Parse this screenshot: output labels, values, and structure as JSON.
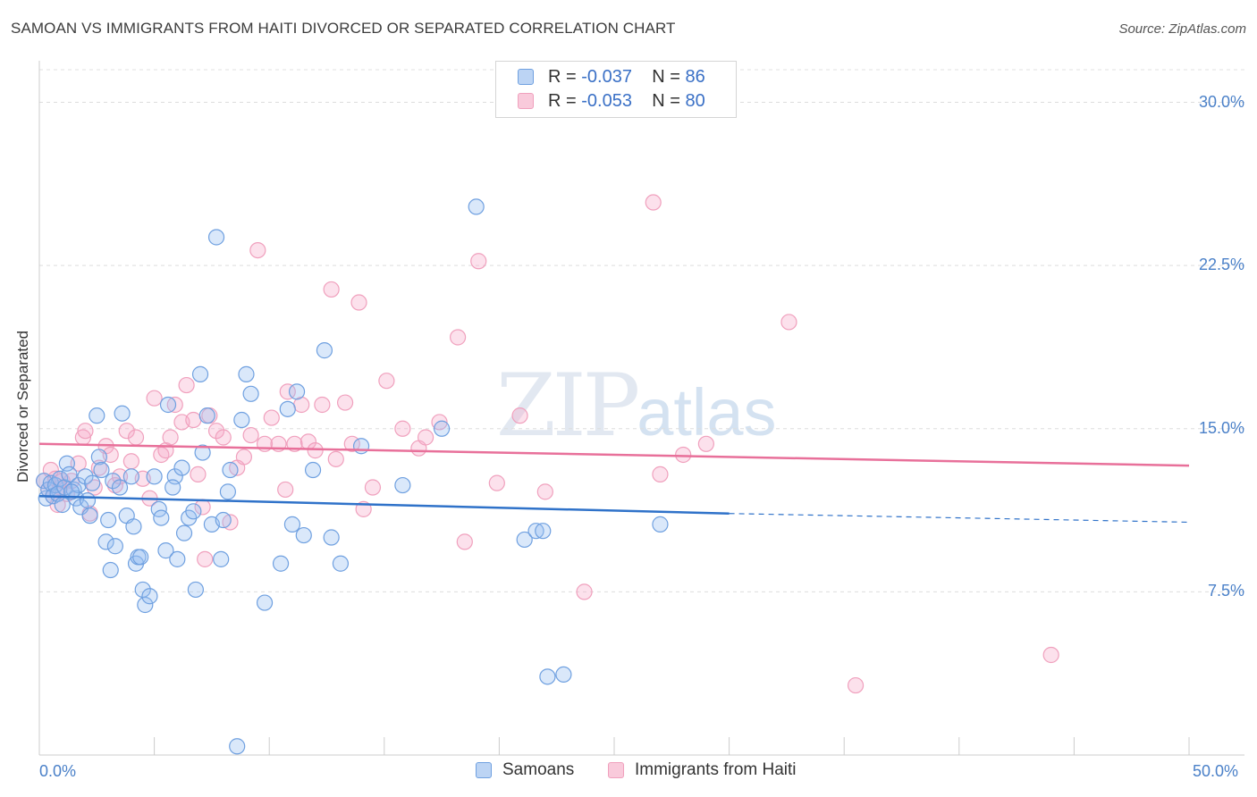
{
  "title": "SAMOAN VS IMMIGRANTS FROM HAITI DIVORCED OR SEPARATED CORRELATION CHART",
  "source": "Source: ZipAtlas.com",
  "watermark": {
    "zip": "ZIP",
    "atlas": "atlas"
  },
  "legend": {
    "r_label": "R =",
    "n_label": "N =",
    "series": [
      {
        "r": "-0.037",
        "n": "86"
      },
      {
        "r": "-0.053",
        "n": "80"
      }
    ]
  },
  "bottom_legend": [
    "Samoans",
    "Immigrants from Haiti"
  ],
  "chart_data": {
    "type": "scatter",
    "title": "SAMOAN VS IMMIGRANTS FROM HAITI DIVORCED OR SEPARATED CORRELATION CHART",
    "xlabel": "",
    "ylabel": "Divorced or Separated",
    "xlim": [
      0,
      50
    ],
    "ylim": [
      0,
      31.5
    ],
    "x_tick_labels": [
      "0.0%",
      "50.0%"
    ],
    "y_ticks": [
      7.5,
      15.0,
      22.5,
      30.0
    ],
    "y_tick_labels": [
      "7.5%",
      "15.0%",
      "22.5%",
      "30.0%"
    ],
    "colors": {
      "samoans": "#6fa0e0",
      "haiti": "#f0a0bd",
      "samoans_line": "#2f72c9",
      "haiti_line": "#e8709a"
    },
    "series": [
      {
        "name": "Samoans",
        "r": -0.037,
        "n": 86,
        "trend": {
          "x0": 0,
          "y0": 11.9,
          "x1": 30,
          "y1": 11.1,
          "dash_to_x": 50,
          "dash_to_y": 10.7
        },
        "points": [
          [
            0.2,
            12.6
          ],
          [
            0.3,
            11.8
          ],
          [
            0.4,
            12.2
          ],
          [
            0.5,
            12.5
          ],
          [
            0.6,
            11.9
          ],
          [
            0.7,
            12.4
          ],
          [
            0.8,
            12.0
          ],
          [
            0.9,
            12.7
          ],
          [
            1.0,
            11.5
          ],
          [
            1.1,
            12.3
          ],
          [
            1.2,
            13.4
          ],
          [
            1.3,
            12.9
          ],
          [
            1.5,
            12.2
          ],
          [
            1.6,
            11.8
          ],
          [
            1.7,
            12.4
          ],
          [
            1.8,
            11.4
          ],
          [
            2.0,
            12.8
          ],
          [
            2.1,
            11.7
          ],
          [
            2.5,
            15.6
          ],
          [
            2.6,
            13.7
          ],
          [
            2.7,
            13.1
          ],
          [
            2.9,
            9.8
          ],
          [
            3.0,
            10.8
          ],
          [
            3.1,
            8.5
          ],
          [
            3.2,
            12.6
          ],
          [
            3.5,
            12.3
          ],
          [
            3.6,
            15.7
          ],
          [
            3.8,
            11.0
          ],
          [
            4.0,
            12.8
          ],
          [
            4.1,
            10.5
          ],
          [
            4.2,
            8.8
          ],
          [
            4.3,
            9.1
          ],
          [
            4.5,
            7.6
          ],
          [
            4.6,
            6.9
          ],
          [
            4.8,
            7.3
          ],
          [
            5.0,
            12.8
          ],
          [
            5.2,
            11.3
          ],
          [
            5.3,
            10.9
          ],
          [
            5.5,
            9.4
          ],
          [
            5.6,
            16.1
          ],
          [
            5.9,
            12.8
          ],
          [
            6.0,
            9.0
          ],
          [
            6.3,
            10.2
          ],
          [
            6.5,
            10.9
          ],
          [
            6.7,
            11.2
          ],
          [
            6.8,
            7.6
          ],
          [
            7.0,
            17.5
          ],
          [
            7.1,
            13.9
          ],
          [
            7.3,
            15.6
          ],
          [
            7.5,
            10.6
          ],
          [
            7.7,
            23.8
          ],
          [
            8.0,
            10.8
          ],
          [
            8.2,
            12.1
          ],
          [
            8.3,
            13.1
          ],
          [
            8.6,
            0.4
          ],
          [
            8.8,
            15.4
          ],
          [
            9.0,
            17.5
          ],
          [
            9.2,
            16.6
          ],
          [
            9.8,
            7.0
          ],
          [
            10.5,
            8.8
          ],
          [
            10.8,
            15.9
          ],
          [
            11.0,
            10.6
          ],
          [
            11.2,
            16.7
          ],
          [
            11.5,
            10.1
          ],
          [
            11.9,
            13.1
          ],
          [
            12.4,
            18.6
          ],
          [
            12.7,
            10.0
          ],
          [
            13.1,
            8.8
          ],
          [
            14.0,
            14.2
          ],
          [
            15.8,
            12.4
          ],
          [
            17.5,
            15.0
          ],
          [
            19.0,
            25.2
          ],
          [
            21.1,
            9.9
          ],
          [
            21.6,
            10.3
          ],
          [
            21.9,
            10.3
          ],
          [
            22.1,
            3.6
          ],
          [
            22.8,
            3.7
          ],
          [
            27.0,
            10.6
          ],
          [
            1.4,
            12.1
          ],
          [
            2.3,
            12.5
          ],
          [
            4.4,
            9.1
          ],
          [
            6.2,
            13.2
          ],
          [
            7.9,
            9.0
          ],
          [
            5.8,
            12.3
          ],
          [
            3.3,
            9.6
          ],
          [
            2.2,
            11.0
          ]
        ]
      },
      {
        "name": "Immigrants from Haiti",
        "r": -0.053,
        "n": 80,
        "trend": {
          "x0": 0,
          "y0": 14.3,
          "x1": 50,
          "y1": 13.3
        },
        "points": [
          [
            0.2,
            12.6
          ],
          [
            0.4,
            12.2
          ],
          [
            0.5,
            13.1
          ],
          [
            0.6,
            11.9
          ],
          [
            0.7,
            12.7
          ],
          [
            0.8,
            11.5
          ],
          [
            0.9,
            12.3
          ],
          [
            1.0,
            12.6
          ],
          [
            1.2,
            12.0
          ],
          [
            1.4,
            12.6
          ],
          [
            1.7,
            13.4
          ],
          [
            1.9,
            14.6
          ],
          [
            2.0,
            14.9
          ],
          [
            2.2,
            11.1
          ],
          [
            2.4,
            12.3
          ],
          [
            2.6,
            13.2
          ],
          [
            2.9,
            14.2
          ],
          [
            3.1,
            13.8
          ],
          [
            3.3,
            12.4
          ],
          [
            3.5,
            12.8
          ],
          [
            3.8,
            14.9
          ],
          [
            4.0,
            13.5
          ],
          [
            4.2,
            14.6
          ],
          [
            4.5,
            12.7
          ],
          [
            4.8,
            11.8
          ],
          [
            5.0,
            16.4
          ],
          [
            5.3,
            13.8
          ],
          [
            5.5,
            14.0
          ],
          [
            5.7,
            14.6
          ],
          [
            5.9,
            16.1
          ],
          [
            6.2,
            15.3
          ],
          [
            6.4,
            17.0
          ],
          [
            6.7,
            15.4
          ],
          [
            6.9,
            12.9
          ],
          [
            7.1,
            11.4
          ],
          [
            7.4,
            15.6
          ],
          [
            7.7,
            14.9
          ],
          [
            8.0,
            14.6
          ],
          [
            8.3,
            10.7
          ],
          [
            8.6,
            13.2
          ],
          [
            8.9,
            13.7
          ],
          [
            9.2,
            14.7
          ],
          [
            9.5,
            23.2
          ],
          [
            9.8,
            14.3
          ],
          [
            10.1,
            15.5
          ],
          [
            10.4,
            14.3
          ],
          [
            10.8,
            16.7
          ],
          [
            11.1,
            14.3
          ],
          [
            11.4,
            16.1
          ],
          [
            11.7,
            14.4
          ],
          [
            12.0,
            14.0
          ],
          [
            12.3,
            16.1
          ],
          [
            12.7,
            21.4
          ],
          [
            12.9,
            13.6
          ],
          [
            13.3,
            16.2
          ],
          [
            13.6,
            14.3
          ],
          [
            13.9,
            20.8
          ],
          [
            14.1,
            11.3
          ],
          [
            14.5,
            12.3
          ],
          [
            15.1,
            17.2
          ],
          [
            15.8,
            15.0
          ],
          [
            16.5,
            14.1
          ],
          [
            16.8,
            14.6
          ],
          [
            17.4,
            15.3
          ],
          [
            18.5,
            9.8
          ],
          [
            19.1,
            22.7
          ],
          [
            19.9,
            12.5
          ],
          [
            20.9,
            15.6
          ],
          [
            22.0,
            12.1
          ],
          [
            23.7,
            7.5
          ],
          [
            18.2,
            19.2
          ],
          [
            26.7,
            25.4
          ],
          [
            27.0,
            12.9
          ],
          [
            28.0,
            13.8
          ],
          [
            29.0,
            14.3
          ],
          [
            32.6,
            19.9
          ],
          [
            35.5,
            3.2
          ],
          [
            44.0,
            4.6
          ],
          [
            7.2,
            9.0
          ],
          [
            10.7,
            12.2
          ]
        ]
      }
    ]
  }
}
